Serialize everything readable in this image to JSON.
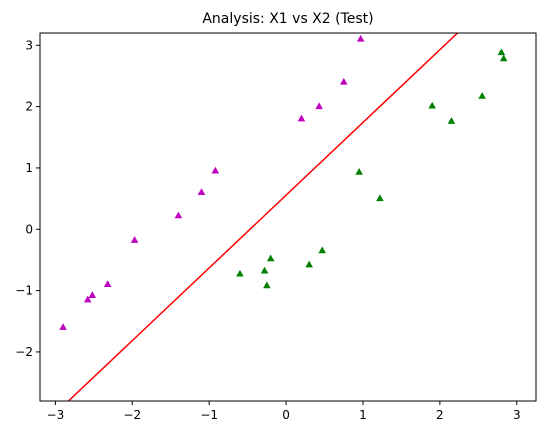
{
  "chart_data": {
    "type": "scatter",
    "title": "Analysis: X1 vs X2 (Test)",
    "xlabel": "",
    "ylabel": "",
    "xlim": [
      -3.2,
      3.25
    ],
    "ylim": [
      -2.8,
      3.2
    ],
    "xticks": [
      -3,
      -2,
      -1,
      0,
      1,
      2,
      3
    ],
    "yticks": [
      -2,
      -1,
      0,
      1,
      2,
      3
    ],
    "xtick_labels": [
      "−3",
      "−2",
      "−1",
      "0",
      "1",
      "2",
      "3"
    ],
    "ytick_labels": [
      "−2",
      "−1",
      "0",
      "1",
      "2",
      "3"
    ],
    "grid": false,
    "series": [
      {
        "marker": "triangle",
        "color": "#bf00bf",
        "points": [
          [
            -2.9,
            -1.6
          ],
          [
            -2.58,
            -1.15
          ],
          [
            -2.52,
            -1.08
          ],
          [
            -2.32,
            -0.9
          ],
          [
            -1.97,
            -0.18
          ],
          [
            -1.4,
            0.22
          ],
          [
            -1.1,
            0.6
          ],
          [
            -0.92,
            0.95
          ],
          [
            0.2,
            1.8
          ],
          [
            0.43,
            2.0
          ],
          [
            0.75,
            2.4
          ],
          [
            0.97,
            3.1
          ]
        ]
      },
      {
        "marker": "triangle",
        "color": "#008000",
        "points": [
          [
            -0.6,
            -0.73
          ],
          [
            -0.28,
            -0.68
          ],
          [
            -0.25,
            -0.92
          ],
          [
            -0.2,
            -0.48
          ],
          [
            0.3,
            -0.58
          ],
          [
            0.47,
            -0.35
          ],
          [
            0.95,
            0.93
          ],
          [
            1.22,
            0.5
          ],
          [
            1.9,
            2.01
          ],
          [
            2.15,
            1.76
          ],
          [
            2.55,
            2.17
          ],
          [
            2.8,
            2.88
          ],
          [
            2.83,
            2.78
          ]
        ]
      }
    ],
    "lines": [
      {
        "color": "#ff0000",
        "points": [
          [
            -2.83,
            -2.8
          ],
          [
            2.23,
            3.2
          ]
        ]
      }
    ]
  }
}
